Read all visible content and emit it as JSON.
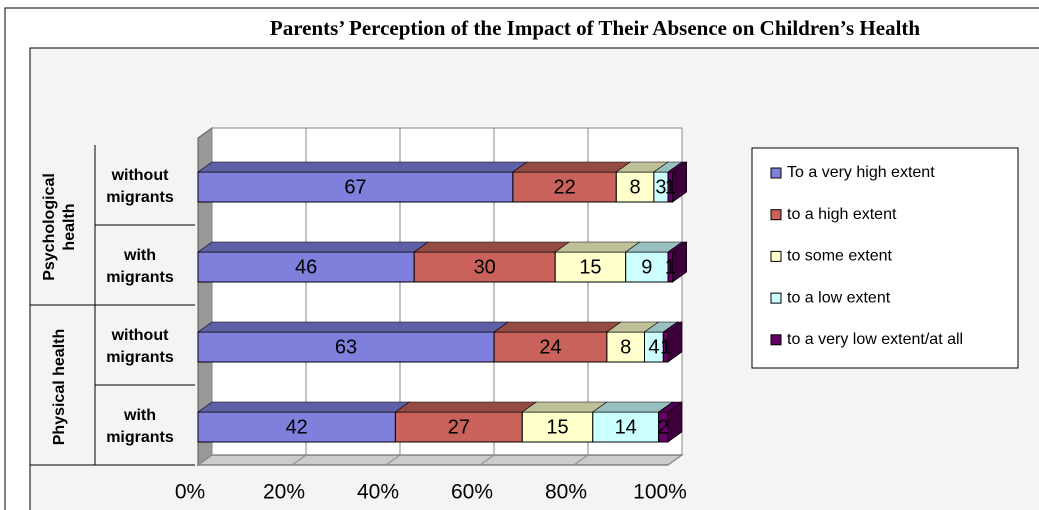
{
  "chart_data": {
    "type": "stacked_bar_horizontal_3d",
    "title": "Parents’ Perception of the Impact of Their Absence on Children’s Health",
    "groups": [
      "Psychological health",
      "Physical health"
    ],
    "categories": [
      "without migrants",
      "with migrants",
      "without migrants",
      "with migrants"
    ],
    "series": [
      {
        "name": "To a very high extent",
        "color": "#7f7fdc",
        "values": [
          67,
          46,
          63,
          42
        ]
      },
      {
        "name": "to a high extent",
        "color": "#c8625a",
        "values": [
          22,
          30,
          24,
          27
        ]
      },
      {
        "name": "to some extent",
        "color": "#ffffcc",
        "values": [
          8,
          15,
          8,
          15
        ]
      },
      {
        "name": "to a low extent",
        "color": "#ccffff",
        "values": [
          3,
          9,
          4,
          14
        ]
      },
      {
        "name": "to a very low extent/at all",
        "color": "#660066",
        "values": [
          1,
          1,
          1,
          2
        ]
      }
    ],
    "xlim": [
      0,
      100
    ],
    "xticks": [
      {
        "value": 0,
        "label": "0%"
      },
      {
        "value": 20,
        "label": "20%"
      },
      {
        "value": 40,
        "label": "40%"
      },
      {
        "value": 60,
        "label": "60%"
      },
      {
        "value": 80,
        "label": "80%"
      },
      {
        "value": 100,
        "label": "100%"
      }
    ],
    "grid": true,
    "legend": "right"
  }
}
